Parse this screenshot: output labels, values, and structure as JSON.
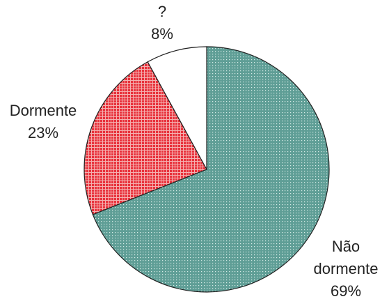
{
  "chart_data": {
    "type": "pie",
    "categories": [
      "Não dormente",
      "Dormente",
      "?"
    ],
    "values": [
      69,
      23,
      8
    ],
    "value_labels": [
      "69%",
      "23%",
      "8%"
    ],
    "colors": [
      "#5f9e96",
      "#e8404a",
      "#ffffff"
    ]
  }
}
